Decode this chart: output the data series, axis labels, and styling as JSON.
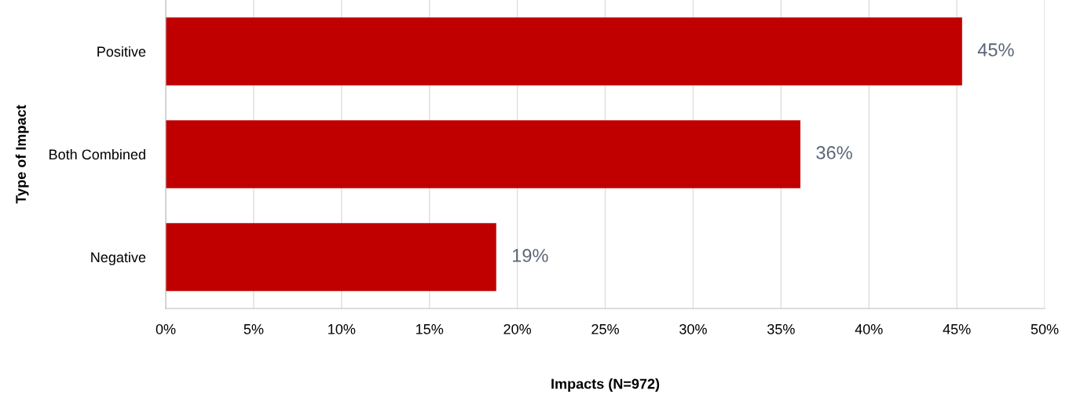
{
  "chart_data": {
    "type": "bar",
    "orientation": "horizontal",
    "xlabel": "Impacts (N=972)",
    "ylabel": "Type of Impact",
    "categories": [
      "Positive",
      "Both Combined",
      "Negative"
    ],
    "values": [
      45.3,
      36.1,
      18.8
    ],
    "color": "#c00000",
    "value_labels": [
      "45%",
      "36%",
      "19%"
    ],
    "xlim": [
      0,
      50
    ],
    "xticks": [
      {
        "value": 0,
        "label": "0%"
      },
      {
        "value": 5,
        "label": "5%"
      },
      {
        "value": 10,
        "label": "10%"
      },
      {
        "value": 15,
        "label": "15%"
      },
      {
        "value": 20,
        "label": "20%"
      },
      {
        "value": 25,
        "label": "25%"
      },
      {
        "value": 30,
        "label": "30%"
      },
      {
        "value": 35,
        "label": "35%"
      },
      {
        "value": 40,
        "label": "40%"
      },
      {
        "value": 45,
        "label": "45%"
      },
      {
        "value": 50,
        "label": "50%"
      }
    ],
    "grid": "x",
    "legend": false
  }
}
